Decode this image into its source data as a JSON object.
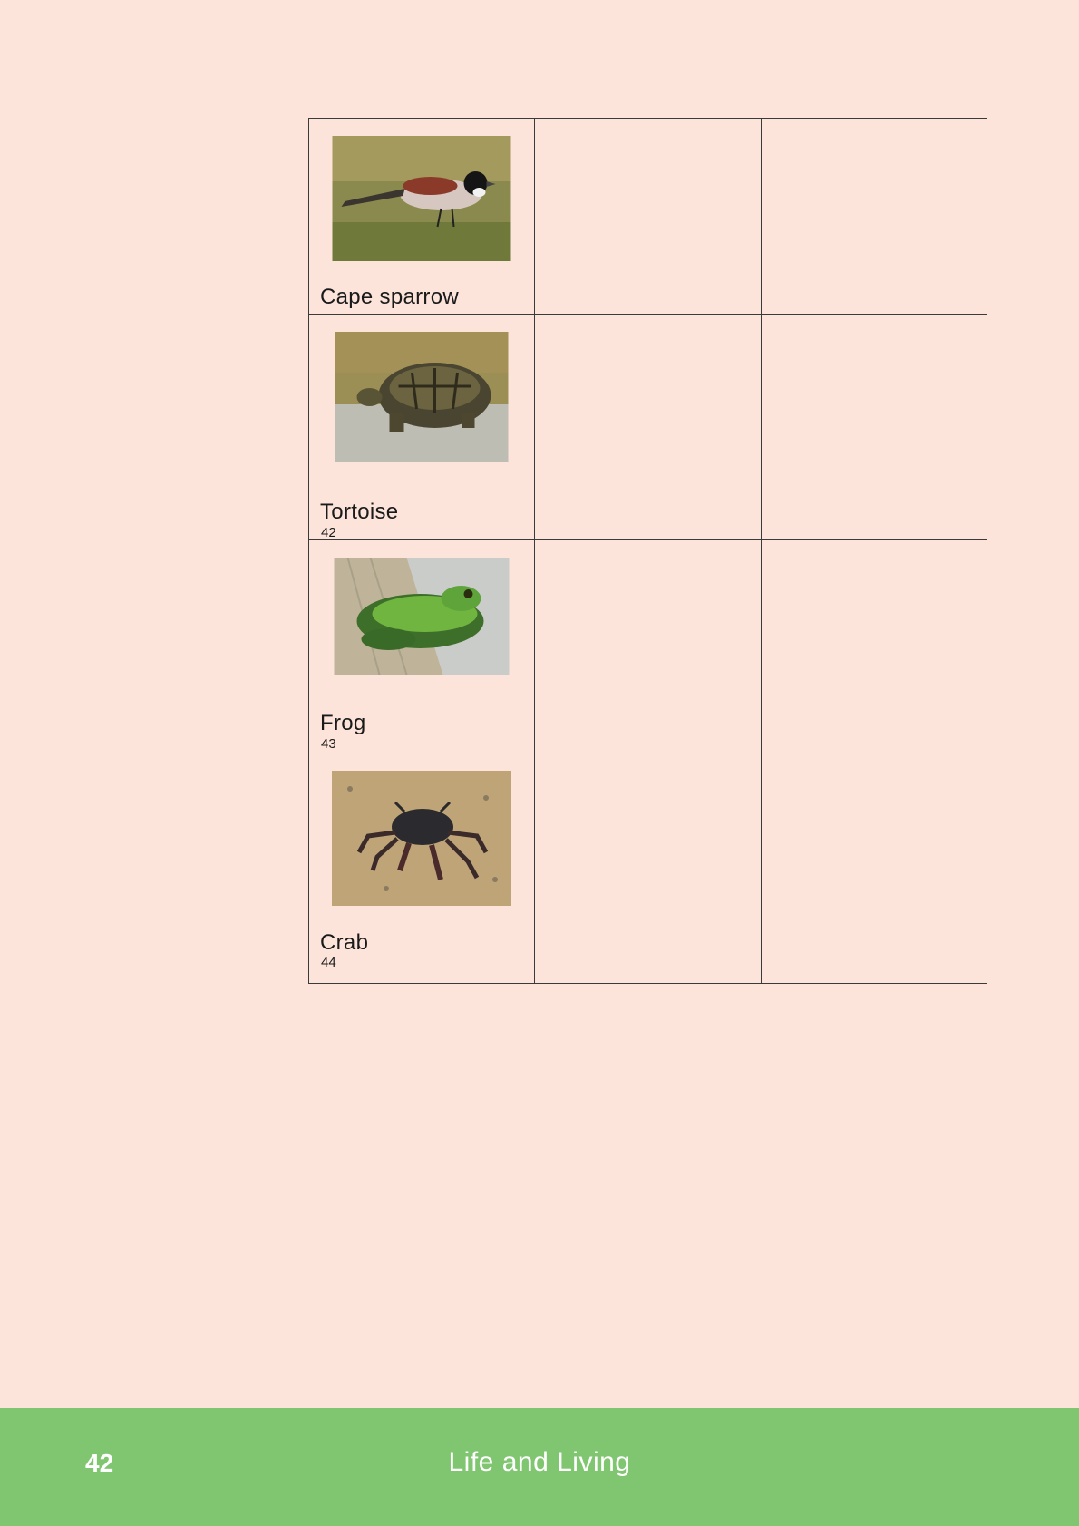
{
  "table": {
    "rows": [
      {
        "name": "Cape sparrow",
        "number": "",
        "photo": "cape-sparrow-photo"
      },
      {
        "name": "Tortoise",
        "number": "42",
        "photo": "tortoise-photo"
      },
      {
        "name": "Frog",
        "number": "43",
        "photo": "frog-photo"
      },
      {
        "name": "Crab",
        "number": "44",
        "photo": "crab-photo"
      }
    ]
  },
  "footer": {
    "page_number": "42",
    "title": "Life and Living",
    "color": "#80c671"
  },
  "colors": {
    "page_background": "#fde4da",
    "border": "#3a3a3a"
  }
}
